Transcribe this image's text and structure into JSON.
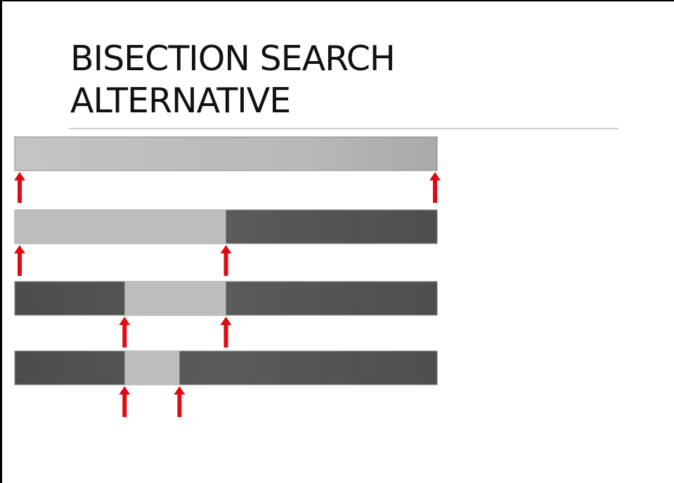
{
  "slide": {
    "title_line1": "BISECTION SEARCH",
    "title_line2": "ALTERNATIVE"
  },
  "colors": {
    "active_segment": "#bdbdbd",
    "discarded_segment": "#555555",
    "pointer_arrow": "#e00b12",
    "title_rule": "#cfcfcf"
  },
  "icons": [
    "up-arrow-icon"
  ],
  "diagram": {
    "steps": [
      {
        "active_range": [
          0,
          1
        ],
        "pointers": [
          0,
          1
        ]
      },
      {
        "active_range": [
          0,
          0.5
        ],
        "pointers": [
          0,
          0.5
        ]
      },
      {
        "active_range": [
          0.26,
          0.5
        ],
        "pointers": [
          0.26,
          0.5
        ]
      },
      {
        "active_range": [
          0.26,
          0.39
        ],
        "pointers": [
          0.26,
          0.39
        ]
      }
    ]
  }
}
